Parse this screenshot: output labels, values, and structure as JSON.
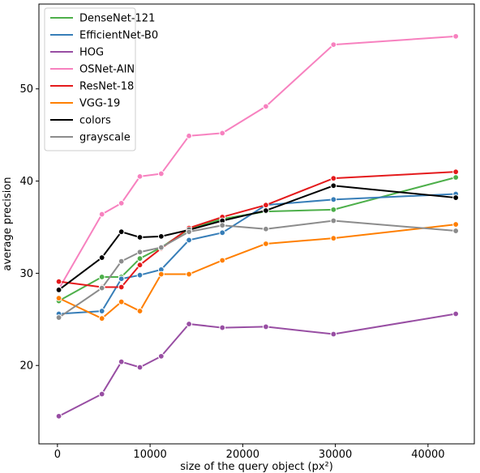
{
  "chart_data": {
    "type": "line",
    "title": "",
    "xlabel": "size of the query object (px²)",
    "ylabel": "average precision",
    "xlim": [
      -2000,
      45000
    ],
    "ylim": [
      11.5,
      59.2
    ],
    "xticks": [
      0,
      10000,
      20000,
      30000,
      40000
    ],
    "yticks": [
      20,
      30,
      40,
      50
    ],
    "grid": false,
    "legend_position": "top-left",
    "x": [
      150,
      4800,
      6900,
      8900,
      11200,
      14200,
      17800,
      22500,
      29800,
      43000
    ],
    "series": [
      {
        "name": "DenseNet-121",
        "color": "#4daf4a",
        "values": [
          27.0,
          29.6,
          29.6,
          31.6,
          32.8,
          34.8,
          35.9,
          36.7,
          36.9,
          40.4
        ]
      },
      {
        "name": "EfficientNet-B0",
        "color": "#377eb8",
        "values": [
          25.6,
          25.9,
          29.4,
          29.8,
          30.4,
          33.6,
          34.4,
          37.4,
          38.0,
          38.6
        ]
      },
      {
        "name": "HOG",
        "color": "#984ea3",
        "values": [
          14.5,
          16.9,
          20.4,
          19.8,
          21.0,
          24.5,
          24.1,
          24.2,
          23.4,
          25.6
        ]
      },
      {
        "name": "OSNet-AIN",
        "color": "#f781bf",
        "values": [
          28.3,
          36.4,
          37.6,
          40.5,
          40.8,
          44.9,
          45.2,
          48.1,
          54.8,
          55.7
        ]
      },
      {
        "name": "ResNet-18",
        "color": "#e41a1c",
        "values": [
          29.1,
          28.5,
          28.5,
          30.9,
          32.7,
          34.9,
          36.1,
          37.4,
          40.3,
          41.0
        ]
      },
      {
        "name": "VGG-19",
        "color": "#ff7f00",
        "values": [
          27.3,
          25.1,
          26.9,
          25.9,
          29.9,
          29.9,
          31.4,
          33.2,
          33.8,
          35.3
        ]
      },
      {
        "name": "colors",
        "color": "#000000",
        "values": [
          28.2,
          31.7,
          34.5,
          33.9,
          34.0,
          34.7,
          35.7,
          36.8,
          39.5,
          38.2
        ]
      },
      {
        "name": "grayscale",
        "color": "#8c8c8c",
        "values": [
          25.2,
          28.4,
          31.3,
          32.3,
          32.8,
          34.5,
          35.2,
          34.8,
          35.7,
          34.6
        ]
      }
    ]
  }
}
